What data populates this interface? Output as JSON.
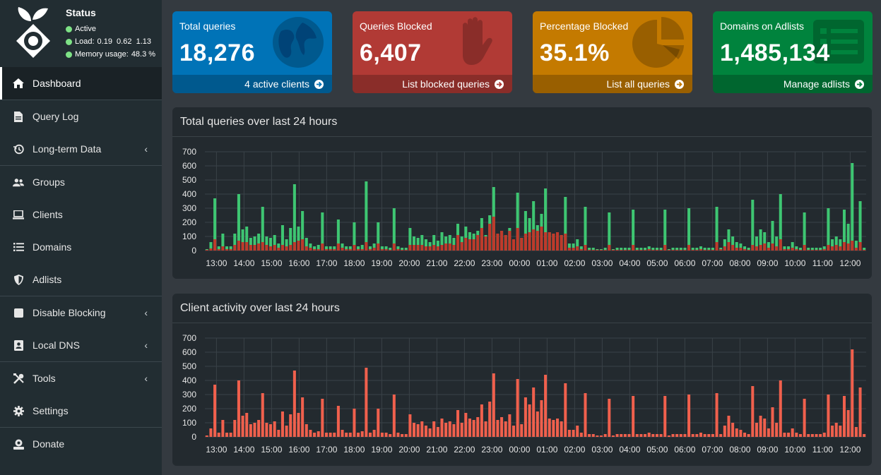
{
  "sidebar": {
    "status_title": "Status",
    "status": "Active",
    "load_label": "Load:",
    "load_values": "0.19  0.62  1.13",
    "memory_label": "Memory usage:",
    "memory_value": "48.3 %",
    "status_color": "#7ee286",
    "items": [
      {
        "label": "Dashboard",
        "icon": "home-icon"
      },
      {
        "label": "Query Log",
        "icon": "file-icon"
      },
      {
        "label": "Long-term Data",
        "icon": "history-icon"
      },
      {
        "label": "Groups",
        "icon": "users-icon"
      },
      {
        "label": "Clients",
        "icon": "laptop-icon"
      },
      {
        "label": "Domains",
        "icon": "list-icon"
      },
      {
        "label": "Adlists",
        "icon": "shield-icon"
      },
      {
        "label": "Disable Blocking",
        "icon": "stop-icon"
      },
      {
        "label": "Local DNS",
        "icon": "address-book-icon"
      },
      {
        "label": "Tools",
        "icon": "tools-icon"
      },
      {
        "label": "Settings",
        "icon": "gear-icon"
      },
      {
        "label": "Donate",
        "icon": "donate-icon"
      }
    ]
  },
  "cards": [
    {
      "label": "Total queries",
      "value": "18,276",
      "footer": "4 active clients",
      "color": "#0073b7",
      "icon": "globe-icon"
    },
    {
      "label": "Queries Blocked",
      "value": "6,407",
      "footer": "List blocked queries",
      "color": "#b13a35",
      "icon": "hand-icon"
    },
    {
      "label": "Percentage Blocked",
      "value": "35.1%",
      "footer": "List all queries",
      "color": "#c47a00",
      "icon": "pie-chart-icon"
    },
    {
      "label": "Domains on Adlists",
      "value": "1,485,134",
      "footer": "Manage adlists",
      "color": "#00833d",
      "icon": "list-alt-icon"
    }
  ],
  "chart_data": [
    {
      "type": "bar",
      "title": "Total queries over last 24 hours",
      "ylim": [
        0,
        700
      ],
      "yticks": [
        "0",
        "100",
        "200",
        "300",
        "400",
        "500",
        "600",
        "700"
      ],
      "xticks": [
        "13:00",
        "14:00",
        "15:00",
        "16:00",
        "17:00",
        "18:00",
        "19:00",
        "20:00",
        "21:00",
        "22:00",
        "23:00",
        "00:00",
        "01:00",
        "02:00",
        "03:00",
        "04:00",
        "05:00",
        "06:00",
        "07:00",
        "08:00",
        "09:00",
        "10:00",
        "11:00",
        "12:00"
      ],
      "series": [
        {
          "color": "#3ec672",
          "values": [
            10,
            60,
            370,
            30,
            120,
            30,
            30,
            120,
            400,
            150,
            170,
            90,
            100,
            120,
            310,
            100,
            90,
            110,
            50,
            180,
            80,
            160,
            470,
            170,
            280,
            90,
            50,
            30,
            40,
            270,
            30,
            30,
            30,
            220,
            50,
            30,
            30,
            200,
            30,
            40,
            490,
            30,
            50,
            200,
            30,
            30,
            20,
            300,
            30,
            20,
            20,
            160,
            100,
            90,
            110,
            80,
            60,
            110,
            70,
            130,
            100,
            110,
            90,
            190,
            100,
            170,
            130,
            120,
            140,
            230,
            110,
            250,
            450,
            120,
            140,
            110,
            160,
            80,
            410,
            90,
            280,
            230,
            350,
            180,
            260,
            440,
            130,
            120,
            130,
            110,
            380,
            50,
            50,
            80,
            30,
            310,
            20,
            20,
            10,
            10,
            20,
            270,
            10,
            20,
            20,
            20,
            20,
            290,
            20,
            20,
            20,
            30,
            20,
            20,
            20,
            290,
            10,
            20,
            20,
            20,
            20,
            300,
            20,
            20,
            30,
            20,
            20,
            20,
            310,
            20,
            80,
            150,
            100,
            60,
            50,
            30,
            20,
            360,
            100,
            150,
            130,
            60,
            210,
            100,
            400,
            30,
            30,
            60,
            30,
            20,
            270,
            20,
            20,
            20,
            20,
            30,
            300,
            80,
            100,
            80,
            290,
            190,
            620,
            70,
            350,
            20
          ]
        },
        {
          "color": "#c0392b",
          "values": [
            5,
            15,
            80,
            10,
            30,
            10,
            10,
            40,
            70,
            60,
            60,
            40,
            40,
            50,
            60,
            40,
            30,
            40,
            20,
            40,
            30,
            40,
            60,
            70,
            80,
            30,
            20,
            10,
            10,
            50,
            10,
            10,
            10,
            50,
            20,
            10,
            10,
            40,
            10,
            10,
            60,
            10,
            20,
            50,
            10,
            10,
            5,
            50,
            10,
            5,
            5,
            40,
            40,
            40,
            40,
            30,
            30,
            40,
            30,
            40,
            50,
            50,
            40,
            110,
            60,
            90,
            80,
            80,
            110,
            160,
            100,
            190,
            240,
            120,
            140,
            110,
            140,
            80,
            160,
            90,
            120,
            130,
            150,
            140,
            170,
            130,
            130,
            120,
            130,
            110,
            120,
            20,
            20,
            30,
            10,
            40,
            5,
            5,
            5,
            5,
            5,
            40,
            5,
            5,
            5,
            5,
            5,
            40,
            5,
            5,
            5,
            10,
            5,
            5,
            5,
            40,
            5,
            5,
            5,
            5,
            5,
            40,
            5,
            5,
            10,
            5,
            5,
            5,
            60,
            10,
            30,
            60,
            40,
            20,
            20,
            10,
            5,
            40,
            30,
            40,
            50,
            20,
            50,
            30,
            80,
            10,
            10,
            20,
            10,
            5,
            40,
            5,
            5,
            5,
            5,
            10,
            40,
            30,
            40,
            30,
            60,
            50,
            70,
            20,
            60,
            5
          ]
        }
      ]
    },
    {
      "type": "bar",
      "title": "Client activity over last 24 hours",
      "ylim": [
        0,
        700
      ],
      "yticks": [
        "0",
        "100",
        "200",
        "300",
        "400",
        "500",
        "600",
        "700"
      ],
      "xticks": [
        "13:00",
        "14:00",
        "15:00",
        "16:00",
        "17:00",
        "18:00",
        "19:00",
        "20:00",
        "21:00",
        "22:00",
        "23:00",
        "00:00",
        "01:00",
        "02:00",
        "03:00",
        "04:00",
        "05:00",
        "06:00",
        "07:00",
        "08:00",
        "09:00",
        "10:00",
        "11:00",
        "12:00"
      ],
      "series": [
        {
          "color": "#f0604d",
          "values": [
            10,
            60,
            370,
            30,
            120,
            30,
            30,
            120,
            400,
            150,
            170,
            90,
            100,
            120,
            310,
            100,
            90,
            110,
            50,
            180,
            80,
            160,
            470,
            170,
            280,
            90,
            50,
            30,
            40,
            270,
            30,
            30,
            30,
            220,
            50,
            30,
            30,
            200,
            30,
            40,
            490,
            30,
            50,
            200,
            30,
            30,
            20,
            300,
            30,
            20,
            20,
            160,
            100,
            90,
            110,
            80,
            60,
            110,
            70,
            130,
            100,
            110,
            90,
            190,
            100,
            170,
            130,
            120,
            140,
            230,
            110,
            250,
            450,
            120,
            140,
            110,
            160,
            80,
            410,
            90,
            280,
            230,
            350,
            180,
            260,
            440,
            130,
            120,
            130,
            110,
            380,
            50,
            50,
            80,
            30,
            310,
            20,
            20,
            10,
            10,
            20,
            270,
            10,
            20,
            20,
            20,
            20,
            290,
            20,
            20,
            20,
            30,
            20,
            20,
            20,
            290,
            10,
            20,
            20,
            20,
            20,
            300,
            20,
            20,
            30,
            20,
            20,
            20,
            310,
            20,
            80,
            150,
            100,
            60,
            50,
            30,
            20,
            360,
            100,
            150,
            130,
            60,
            210,
            100,
            400,
            30,
            30,
            60,
            30,
            20,
            270,
            20,
            20,
            20,
            20,
            30,
            300,
            80,
            100,
            80,
            290,
            190,
            620,
            70,
            350,
            20
          ]
        }
      ]
    }
  ]
}
